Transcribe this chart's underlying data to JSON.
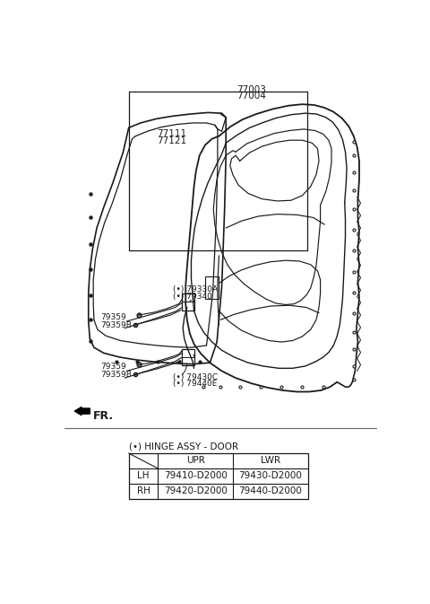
{
  "bg_color": "#ffffff",
  "line_color": "#1a1a1a",
  "text_color": "#1a1a1a",
  "table_cols": [
    "",
    "UPR",
    "LWR"
  ],
  "table_rows": [
    [
      "LH",
      "79410-D2000",
      "79430-D2000"
    ],
    [
      "RH",
      "79420-D2000",
      "79440-D2000"
    ]
  ]
}
